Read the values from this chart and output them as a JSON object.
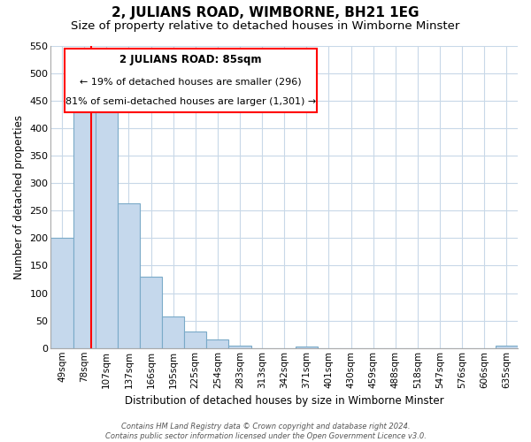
{
  "title": "2, JULIANS ROAD, WIMBORNE, BH21 1EG",
  "subtitle": "Size of property relative to detached houses in Wimborne Minster",
  "xlabel": "Distribution of detached houses by size in Wimborne Minster",
  "ylabel": "Number of detached properties",
  "bar_labels": [
    "49sqm",
    "78sqm",
    "107sqm",
    "137sqm",
    "166sqm",
    "195sqm",
    "225sqm",
    "254sqm",
    "283sqm",
    "313sqm",
    "342sqm",
    "371sqm",
    "401sqm",
    "430sqm",
    "459sqm",
    "488sqm",
    "518sqm",
    "547sqm",
    "576sqm",
    "606sqm",
    "635sqm"
  ],
  "bar_values": [
    200,
    455,
    435,
    263,
    130,
    58,
    30,
    15,
    5,
    0,
    0,
    3,
    0,
    0,
    0,
    0,
    0,
    0,
    0,
    0,
    5
  ],
  "bar_color_fill": "#c5d8ec",
  "bar_color_edge": "#7aaac8",
  "red_line_x": 1.3,
  "ylim": [
    0,
    550
  ],
  "yticks": [
    0,
    50,
    100,
    150,
    200,
    250,
    300,
    350,
    400,
    450,
    500,
    550
  ],
  "annotation_title": "2 JULIANS ROAD: 85sqm",
  "annotation_line1": "← 19% of detached houses are smaller (296)",
  "annotation_line2": "81% of semi-detached houses are larger (1,301) →",
  "footer_line1": "Contains HM Land Registry data © Crown copyright and database right 2024.",
  "footer_line2": "Contains public sector information licensed under the Open Government Licence v3.0.",
  "background_color": "#ffffff",
  "grid_color": "#c8d8e8",
  "title_fontsize": 11,
  "subtitle_fontsize": 9.5
}
